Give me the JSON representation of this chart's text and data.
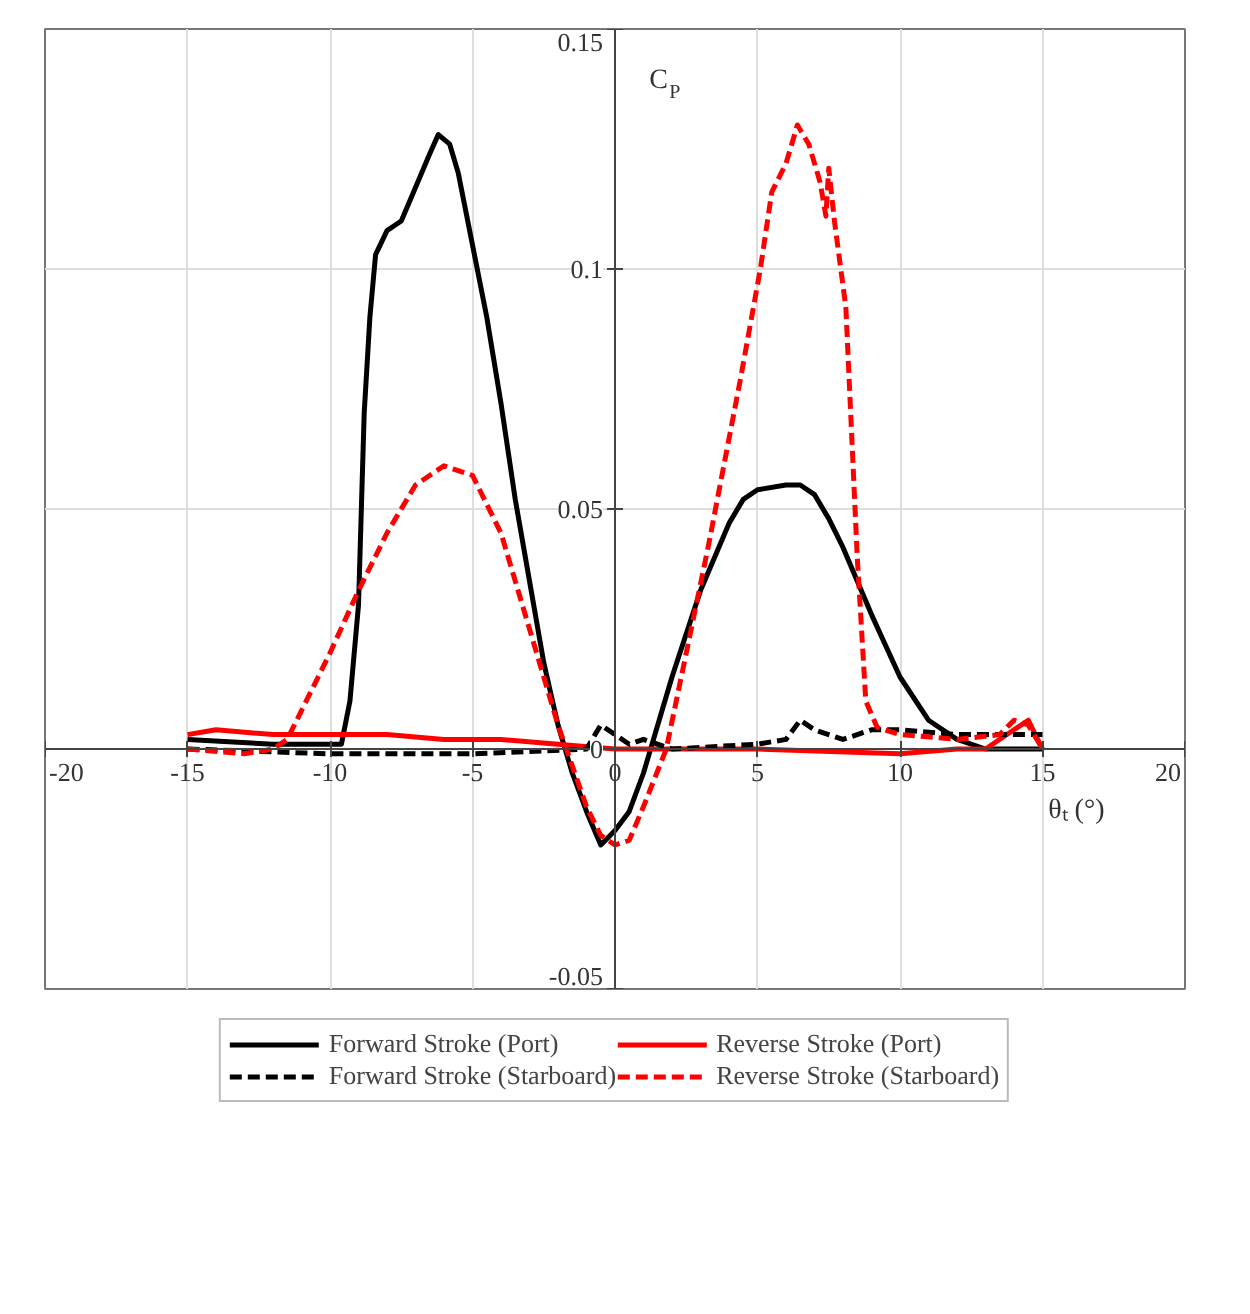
{
  "chart_data": {
    "type": "line",
    "xlabel": "θₜ (°)",
    "ylabel": "C$_{P}$",
    "xlim": [
      -20,
      20
    ],
    "ylim": [
      -0.05,
      0.15
    ],
    "xticks": [
      -20,
      -15,
      -10,
      -5,
      0,
      5,
      10,
      15,
      20
    ],
    "yticks": [
      -0.05,
      0,
      0.05,
      0.1,
      0.15
    ],
    "grid": true,
    "legend": "bottom",
    "marker": "none",
    "series": [
      {
        "name": "Forward Stroke (Port)",
        "color": "#000000",
        "line_style": "solid",
        "x": [
          -15,
          -12,
          -9.6,
          -9.3,
          -9,
          -8.8,
          -8.6,
          -8.4,
          -8,
          -7.5,
          -7,
          -6.5,
          -6.2,
          -5.8,
          -5.5,
          -5,
          -4.5,
          -4,
          -3.5,
          -3,
          -2.5,
          -2,
          -1.5,
          -1,
          -0.5,
          0,
          0.5,
          1,
          1.5,
          2,
          3,
          4,
          4.5,
          5,
          6,
          6.5,
          7,
          7.5,
          8,
          9,
          10,
          11,
          12,
          13,
          14,
          15
        ],
        "values": [
          0.002,
          0.001,
          0.001,
          0.01,
          0.03,
          0.07,
          0.09,
          0.103,
          0.108,
          0.11,
          0.117,
          0.124,
          0.128,
          0.126,
          0.12,
          0.105,
          0.09,
          0.072,
          0.052,
          0.035,
          0.018,
          0.005,
          -0.005,
          -0.013,
          -0.02,
          -0.017,
          -0.013,
          -0.005,
          0.005,
          0.015,
          0.033,
          0.047,
          0.052,
          0.054,
          0.055,
          0.055,
          0.053,
          0.048,
          0.042,
          0.028,
          0.015,
          0.006,
          0.002,
          0,
          0,
          0
        ]
      },
      {
        "name": "Reverse Stroke (Port)",
        "color": "#ff0000",
        "line_style": "solid",
        "x": [
          -15,
          -14,
          -12,
          -10,
          -8,
          -6,
          -4,
          -2,
          0,
          5,
          10,
          12,
          13,
          14,
          14.5,
          15
        ],
        "values": [
          0.003,
          0.004,
          0.003,
          0.003,
          0.003,
          0.002,
          0.002,
          0.001,
          0,
          0,
          -0.001,
          0,
          0,
          0.004,
          0.006,
          0
        ]
      },
      {
        "name": "Forward Stroke (Starboard)",
        "color": "#000000",
        "line_style": "dashed",
        "x": [
          -15,
          -10,
          -5,
          -1,
          -0.5,
          0,
          0.5,
          1,
          2,
          5,
          6,
          6.5,
          7,
          8,
          9,
          10,
          12,
          14,
          15
        ],
        "values": [
          0,
          -0.001,
          -0.001,
          0,
          0.005,
          0.003,
          0.001,
          0.002,
          0,
          0.001,
          0.002,
          0.006,
          0.004,
          0.002,
          0.004,
          0.004,
          0.003,
          0.003,
          0.003
        ]
      },
      {
        "name": "Reverse Stroke (Starboard)",
        "color": "#ff0000",
        "line_style": "dashed",
        "x": [
          -15,
          -13,
          -12,
          -11.5,
          -11,
          -10,
          -9,
          -8,
          -7,
          -6,
          -5,
          -4,
          -3,
          -2,
          -1,
          -0.5,
          0,
          0.5,
          1,
          1.8,
          2.5,
          3.3,
          4.4,
          5.1,
          5.5,
          6,
          6.4,
          6.8,
          7.2,
          7.4,
          7.5,
          7.7,
          8.1,
          8.5,
          8.8,
          9.2,
          10,
          12,
          13.5,
          14,
          14.5,
          15
        ],
        "values": [
          0,
          -0.001,
          0,
          0.002,
          0.008,
          0.02,
          0.033,
          0.045,
          0.055,
          0.059,
          0.057,
          0.045,
          0.025,
          0.005,
          -0.012,
          -0.018,
          -0.02,
          -0.019,
          -0.012,
          0,
          0.02,
          0.043,
          0.077,
          0.1,
          0.116,
          0.122,
          0.13,
          0.126,
          0.118,
          0.111,
          0.121,
          0.11,
          0.092,
          0.04,
          0.01,
          0.0045,
          0.003,
          0.002,
          0.003,
          0.006,
          0.005,
          0
        ]
      }
    ]
  }
}
